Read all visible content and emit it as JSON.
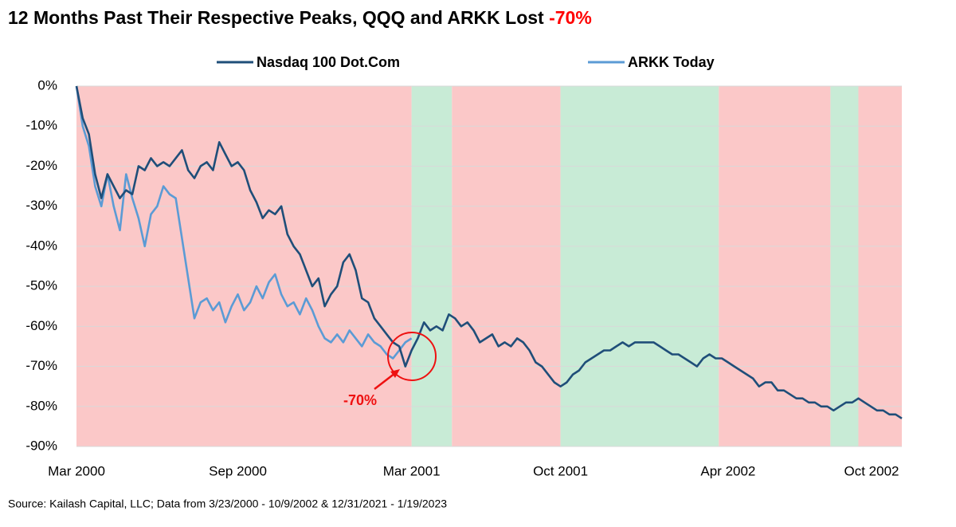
{
  "chart_data": {
    "type": "line",
    "title": "12 Months Past Their Respective Peaks, QQQ and ARKK Lost ",
    "title_highlight": "-70%",
    "source": "Source: Kailash Capital, LLC; Data from 3/23/2000 - 10/9/2002 & 12/31/2021 - 1/19/2023",
    "annotation": "-70%",
    "categories": [
      "Mar 2000",
      null,
      null,
      null,
      null,
      null,
      null,
      null,
      null,
      null,
      null,
      null,
      null,
      null,
      null,
      null,
      null,
      null,
      null,
      null,
      null,
      null,
      null,
      null,
      null,
      null,
      "Sep 2000",
      null,
      null,
      null,
      null,
      null,
      null,
      null,
      null,
      null,
      null,
      null,
      null,
      null,
      null,
      null,
      null,
      null,
      null,
      null,
      null,
      null,
      null,
      null,
      null,
      null,
      null,
      null,
      "Mar 2001",
      null,
      null,
      null,
      null,
      null,
      null,
      null,
      null,
      null,
      null,
      null,
      null,
      null,
      null,
      null,
      null,
      null,
      null,
      null,
      null,
      null,
      null,
      null,
      "Oct 2001",
      null,
      null,
      null,
      null,
      null,
      null,
      null,
      null,
      null,
      null,
      null,
      null,
      null,
      null,
      null,
      null,
      null,
      null,
      null,
      null,
      null,
      null,
      null,
      null,
      null,
      null,
      "Apr 2002",
      null,
      null,
      null,
      null,
      null,
      null,
      null,
      null,
      null,
      null,
      null,
      null,
      null,
      null,
      null,
      null,
      null,
      null,
      null,
      null,
      null,
      null,
      null,
      "Oct 2002",
      null,
      null,
      null,
      null
    ],
    "series": [
      {
        "name": "Nasdaq 100 Dot.Com",
        "color": "#1f4e79",
        "values": [
          0,
          -8,
          -12,
          -22,
          -28,
          -22,
          -25,
          -28,
          -26,
          -27,
          -20,
          -21,
          -18,
          -20,
          -19,
          -20,
          -18,
          -16,
          -21,
          -23,
          -20,
          -19,
          -21,
          -14,
          -17,
          -20,
          -19,
          -21,
          -26,
          -29,
          -33,
          -31,
          -32,
          -30,
          -37,
          -40,
          -42,
          -46,
          -50,
          -48,
          -55,
          -52,
          -50,
          -44,
          -42,
          -46,
          -53,
          -54,
          -58,
          -60,
          -62,
          -64,
          -65,
          -70,
          -66,
          -63,
          -59,
          -61,
          -60,
          -61,
          -57,
          -58,
          -60,
          -59,
          -61,
          -64,
          -63,
          -62,
          -65,
          -64,
          -65,
          -63,
          -64,
          -66,
          -69,
          -70,
          -72,
          -74,
          -75,
          -74,
          -72,
          -71,
          -69,
          -68,
          -67,
          -66,
          -66,
          -65,
          -64,
          -65,
          -64,
          -64,
          -64,
          -64,
          -65,
          -66,
          -67,
          -67,
          -68,
          -69,
          -70,
          -68,
          -67,
          -68,
          -68,
          -69,
          -70,
          -71,
          -72,
          -73,
          -75,
          -74,
          -74,
          -76,
          -76,
          -77,
          -78,
          -78,
          -79,
          -79,
          -80,
          -80,
          -81,
          -80,
          -79,
          -79,
          -78,
          -79,
          -80,
          -81,
          -81,
          -82,
          -82,
          -83
        ]
      },
      {
        "name": "ARKK Today",
        "color": "#5b9bd5",
        "values": [
          0,
          -10,
          -15,
          -25,
          -30,
          -22,
          -30,
          -36,
          -22,
          -28,
          -33,
          -40,
          -32,
          -30,
          -25,
          -27,
          -28,
          -38,
          -48,
          -58,
          -54,
          -53,
          -56,
          -54,
          -59,
          -55,
          -52,
          -56,
          -54,
          -50,
          -53,
          -49,
          -47,
          -52,
          -55,
          -54,
          -57,
          -53,
          -56,
          -60,
          -63,
          -64,
          -62,
          -64,
          -61,
          -63,
          -65,
          -62,
          -64,
          -65,
          -67,
          -68,
          -66,
          -64,
          -63,
          null,
          null,
          null,
          null,
          null,
          null,
          null,
          null,
          null,
          null,
          null,
          null,
          null,
          null,
          null,
          null,
          null,
          null,
          null,
          null,
          null,
          null,
          null,
          null,
          null,
          null,
          null,
          null,
          null,
          null,
          null,
          null,
          null,
          null,
          null,
          null,
          null,
          null,
          null,
          null,
          null,
          null,
          null,
          null,
          null,
          null,
          null,
          null,
          null,
          null,
          null,
          null,
          null,
          null,
          null,
          null,
          null,
          null,
          null,
          null,
          null,
          null,
          null,
          null,
          null,
          null,
          null,
          null,
          null,
          null,
          null,
          null,
          null,
          null,
          null,
          null,
          null,
          null,
          null
        ]
      }
    ],
    "ylim": [
      -90,
      0
    ],
    "yticks": [
      {
        "value": 0,
        "label": "0%"
      },
      {
        "value": -10,
        "label": "-10%"
      },
      {
        "value": -20,
        "label": "-20%"
      },
      {
        "value": -30,
        "label": "-30%"
      },
      {
        "value": -40,
        "label": "-40%"
      },
      {
        "value": -50,
        "label": "-50%"
      },
      {
        "value": -60,
        "label": "-60%"
      },
      {
        "value": -70,
        "label": "-70%"
      },
      {
        "value": -80,
        "label": "-80%"
      },
      {
        "value": -90,
        "label": "-90%"
      }
    ],
    "grid": true,
    "shading": [
      {
        "from": 0,
        "to": 54,
        "color": "#fbc8c8"
      },
      {
        "from": 54,
        "to": 60.5,
        "color": "#c8ebd6"
      },
      {
        "from": 60.5,
        "to": 78,
        "color": "#fbc8c8"
      },
      {
        "from": 78,
        "to": 103.5,
        "color": "#c8ebd6"
      },
      {
        "from": 103.5,
        "to": 121.5,
        "color": "#fbc8c8"
      },
      {
        "from": 121.5,
        "to": 126,
        "color": "#c8ebd6"
      },
      {
        "from": 126,
        "to": 133,
        "color": "#fbc8c8"
      }
    ]
  }
}
